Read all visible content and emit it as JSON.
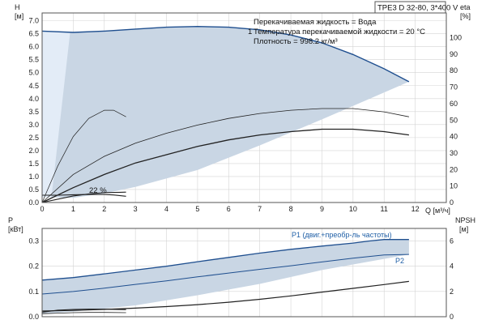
{
  "chart_data": [
    {
      "type": "line",
      "title": "TPE3 D 32-80, 3*400 V",
      "xlabel": "Q [м³/ч]",
      "ylabel_left": "H [м]",
      "ylabel_right": "eta [%]",
      "xlim": [
        0,
        13
      ],
      "ylim": [
        0,
        7.3
      ],
      "ylim_right": [
        0,
        115
      ],
      "xticks": [
        "0",
        "1",
        "2",
        "3",
        "4",
        "5",
        "6",
        "7",
        "8",
        "9",
        "10",
        "11",
        "12"
      ],
      "yticks": [
        "0.0",
        "0.5",
        "1.0",
        "1.5",
        "2.0",
        "2.5",
        "3.0",
        "3.5",
        "4.0",
        "4.5",
        "5.0",
        "5.5",
        "6.0",
        "6.5",
        "7.0"
      ],
      "yticks_right": [
        "0",
        "10",
        "20",
        "30",
        "40",
        "50",
        "60",
        "70",
        "80",
        "90",
        "100"
      ],
      "grid": true,
      "info_lines": [
        "Перекачиваемая жидкость = Вода",
        "Температура перекачиваемой жидкости = 20 °C",
        "Плотность = 998.2 кг/м³"
      ],
      "marker_label": "1",
      "annotation": "22 %",
      "series": [
        {
          "role": "max-head-curve",
          "x": [
            0,
            1,
            2,
            3,
            4,
            5,
            6,
            7,
            8,
            9,
            10,
            11,
            11.8
          ],
          "y": [
            6.6,
            6.55,
            6.6,
            6.68,
            6.75,
            6.78,
            6.75,
            6.65,
            6.45,
            6.15,
            5.7,
            5.15,
            4.65
          ]
        },
        {
          "role": "efficiency-max",
          "axis": "right",
          "x": [
            0,
            1,
            2,
            3,
            4,
            5,
            6,
            7,
            8,
            9,
            10,
            11,
            11.8
          ],
          "y": [
            0,
            17,
            28,
            36,
            42,
            47,
            51,
            54,
            56,
            57,
            57,
            55,
            52
          ]
        },
        {
          "role": "efficiency-mid",
          "axis": "right",
          "x": [
            0,
            1,
            2,
            3,
            4,
            5,
            6,
            7,
            8,
            9,
            10,
            11,
            11.8
          ],
          "y": [
            0,
            9,
            17,
            24,
            29,
            34,
            38,
            41,
            43,
            44.5,
            44.5,
            43,
            41
          ]
        },
        {
          "role": "efficiency-min-speed",
          "axis": "right",
          "x": [
            0,
            0.5,
            1,
            1.5,
            2,
            2.3,
            2.7
          ],
          "y": [
            0,
            22,
            40,
            51,
            56,
            56,
            52
          ]
        },
        {
          "role": "efficiency-low",
          "axis": "right",
          "x": [
            0,
            0.5,
            1,
            1.5,
            2,
            2.5,
            2.7
          ],
          "y": [
            0,
            2,
            4,
            5.2,
            6,
            6.2,
            6.3
          ]
        },
        {
          "role": "min-head-curve",
          "x": [
            0,
            0.5,
            1,
            1.5,
            2,
            2.3,
            2.7
          ],
          "y": [
            0.28,
            0.28,
            0.3,
            0.31,
            0.31,
            0.29,
            0.24
          ]
        }
      ]
    },
    {
      "type": "line",
      "xlabel": "Q [м³/ч]",
      "ylabel_left": "P [кВт]",
      "ylabel_right": "NPSH [м]",
      "xlim": [
        0,
        13
      ],
      "ylim": [
        0,
        0.35
      ],
      "ylim_right": [
        0,
        7
      ],
      "yticks": [
        "0.0",
        "0.1",
        "0.2",
        "0.3"
      ],
      "yticks_right": [
        "0",
        "2",
        "4",
        "6"
      ],
      "grid": true,
      "series": [
        {
          "name": "P1 (двиг.+преобр-ль частоты)",
          "x": [
            0,
            1,
            2,
            3,
            4,
            5,
            6,
            7,
            8,
            9,
            10,
            10.5,
            11,
            11.8
          ],
          "y": [
            0.145,
            0.155,
            0.17,
            0.185,
            0.2,
            0.218,
            0.235,
            0.252,
            0.267,
            0.28,
            0.292,
            0.3,
            0.306,
            0.306
          ]
        },
        {
          "name": "P2",
          "x": [
            0,
            1,
            2,
            3,
            4,
            5,
            6,
            7,
            8,
            9,
            10,
            11,
            11.8
          ],
          "y": [
            0.09,
            0.1,
            0.113,
            0.128,
            0.142,
            0.158,
            0.173,
            0.188,
            0.202,
            0.217,
            0.232,
            0.245,
            0.247
          ]
        },
        {
          "role": "npsh",
          "axis": "right",
          "x": [
            0,
            1,
            2,
            3,
            4,
            5,
            6,
            7,
            8,
            9,
            10,
            11,
            11.8
          ],
          "y": [
            0.45,
            0.5,
            0.58,
            0.68,
            0.8,
            0.96,
            1.15,
            1.38,
            1.65,
            1.95,
            2.25,
            2.55,
            2.8
          ]
        },
        {
          "role": "p1-min-speed",
          "x": [
            0,
            0.5,
            1,
            1.5,
            2,
            2.7
          ],
          "y": [
            0.018,
            0.026,
            0.029,
            0.03,
            0.03,
            0.028
          ]
        },
        {
          "role": "p2-min-speed",
          "x": [
            0,
            0.5,
            1,
            1.5,
            2,
            2.7
          ],
          "y": [
            0.012,
            0.014,
            0.016,
            0.017,
            0.017,
            0.016
          ]
        }
      ]
    }
  ]
}
